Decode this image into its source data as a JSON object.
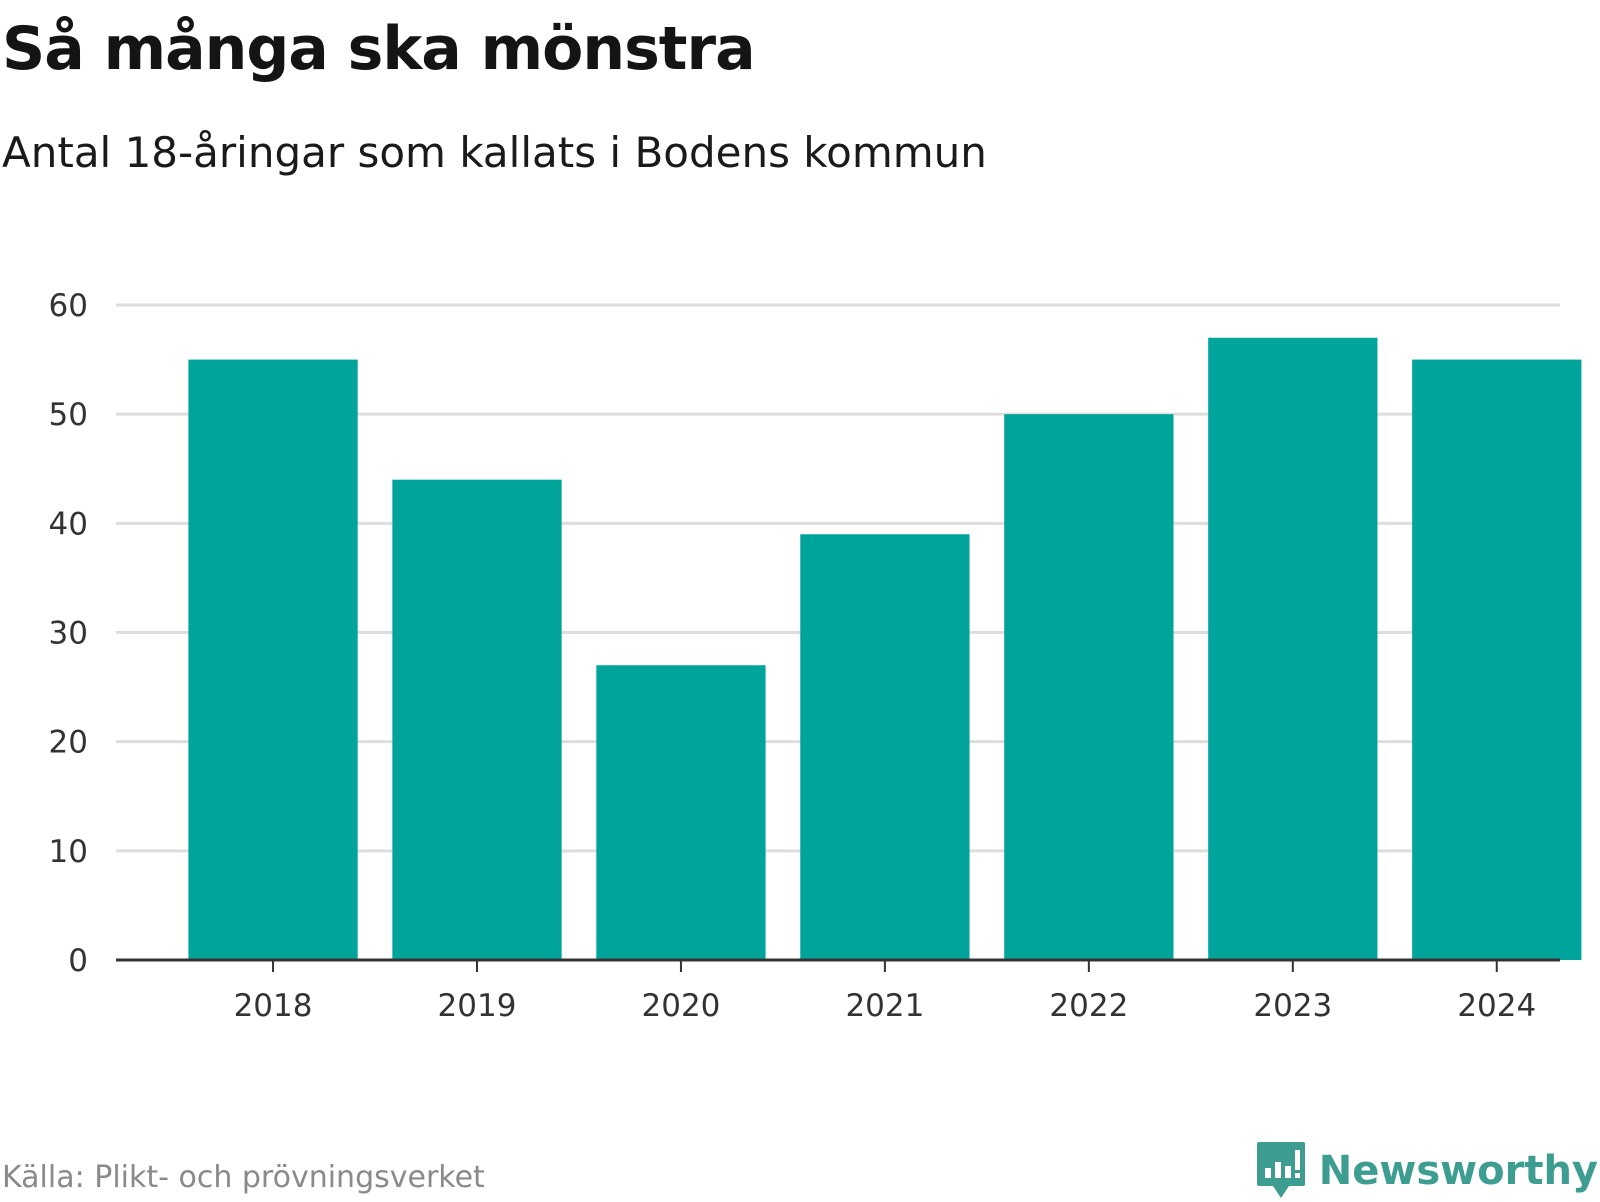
{
  "title": "Så många ska mönstra",
  "subtitle": "Antal 18-åringar som kallats i Bodens kommun",
  "source": "Källa: Plikt- och prövningsverket",
  "brand": {
    "name": "Newsworthy",
    "logo_icon": "chart-speech-bubble-icon",
    "color": "#3d9d91"
  },
  "colors": {
    "bar": "#00a49a",
    "grid": "#dddddd",
    "axis": "#333333"
  },
  "chart_data": {
    "type": "bar",
    "categories": [
      "2018",
      "2019",
      "2020",
      "2021",
      "2022",
      "2023",
      "2024"
    ],
    "values": [
      55,
      44,
      27,
      39,
      50,
      57,
      55
    ],
    "ylim": [
      0,
      60
    ],
    "yticks": [
      "0",
      "10",
      "20",
      "30",
      "40",
      "50",
      "60"
    ],
    "grid": true,
    "legend": "none"
  }
}
